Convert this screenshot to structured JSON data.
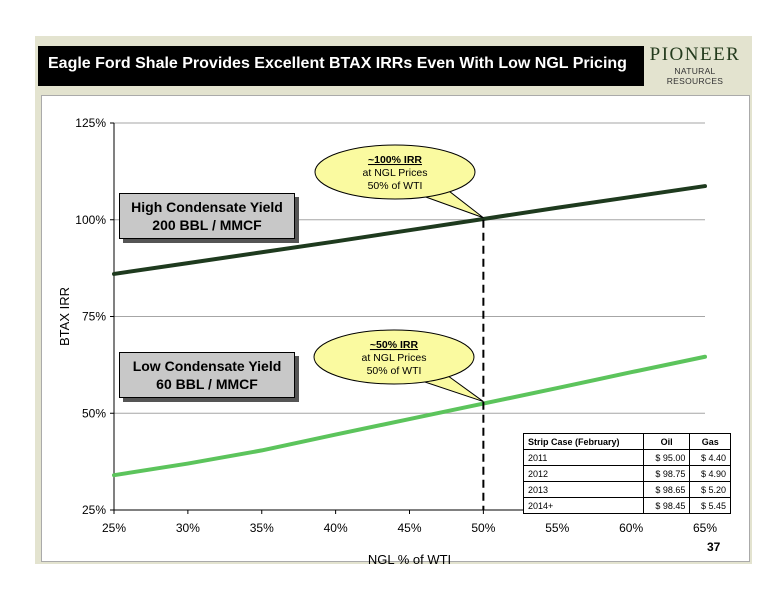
{
  "slide": {
    "title": "Eagle Ford Shale Provides Excellent BTAX IRRs Even With Low NGL Pricing",
    "logo_main": "PIONEER",
    "logo_sub": "NATURAL RESOURCES",
    "page_number": "37"
  },
  "colors": {
    "high_series": "#1e3a1e",
    "low_series": "#5cc45c",
    "callout_fill": "#fafaa0",
    "slide_bg": "#e3e3cf"
  },
  "chart_data": {
    "type": "line",
    "xlabel": "NGL % of WTI",
    "ylabel": "BTAX IRR",
    "x": [
      25,
      30,
      35,
      40,
      45,
      50,
      55,
      60,
      65
    ],
    "xlim": [
      25,
      65
    ],
    "ylim": [
      25,
      125
    ],
    "x_ticks": [
      25,
      30,
      35,
      40,
      45,
      50,
      55,
      60,
      65
    ],
    "y_ticks": [
      25,
      50,
      75,
      100,
      125
    ],
    "x_tick_labels": [
      "25%",
      "30%",
      "35%",
      "40%",
      "45%",
      "50%",
      "55%",
      "60%",
      "65%"
    ],
    "y_tick_labels": [
      "25%",
      "50%",
      "75%",
      "100%",
      "125%"
    ],
    "grid": "horizontal",
    "series": [
      {
        "values": [
          86,
          88.8,
          91.6,
          94.4,
          97.3,
          100.2,
          103.1,
          105.9,
          108.7
        ]
      },
      {
        "values": [
          34,
          37,
          40.4,
          44.5,
          48.5,
          52.5,
          56.5,
          60.6,
          64.6
        ]
      }
    ],
    "reference_line": {
      "x": 50,
      "style": "dashed"
    },
    "series_labels": [
      {
        "line1": "High Condensate Yield",
        "line2": "200 BBL / MMCF"
      },
      {
        "line1": "Low Condensate Yield",
        "line2": "60 BBL / MMCF"
      }
    ],
    "annotations": [
      {
        "headline": "~100% IRR",
        "line2": "at NGL Prices",
        "line3": "50% of WTI",
        "x": 50,
        "y": 100
      },
      {
        "headline": "~50% IRR",
        "line2": "at NGL Prices",
        "line3": "50% of WTI",
        "x": 50,
        "y": 52.5
      }
    ],
    "table": {
      "headers": [
        "Strip Case (February)",
        "Oil",
        "Gas"
      ],
      "rows": [
        [
          "2011",
          "$ 95.00",
          "$ 4.40"
        ],
        [
          "2012",
          "$ 98.75",
          "$ 4.90"
        ],
        [
          "2013",
          "$ 98.65",
          "$ 5.20"
        ],
        [
          "2014+",
          "$ 98.45",
          "$ 5.45"
        ]
      ]
    }
  }
}
